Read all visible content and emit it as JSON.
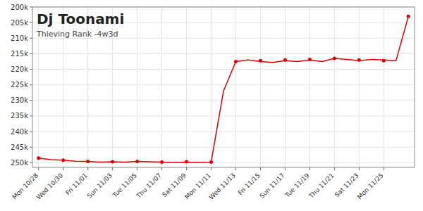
{
  "chart_data": {
    "type": "line",
    "title": "Dj Toonami",
    "subtitle": "Thieving Rank -4w3d",
    "categories": [
      "Mon 10/28",
      null,
      "Wed 10/30",
      null,
      "Fri 11/01",
      null,
      "Sun 11/03",
      null,
      "Tue 11/05",
      null,
      "Thu 11/07",
      null,
      "Sat 11/09",
      null,
      "Mon 11/11",
      null,
      "Wed 11/13",
      null,
      "Fri 11/15",
      null,
      "Sun 11/17",
      null,
      "Tue 11/19",
      null,
      "Thu 11/21",
      null,
      "Sat 11/23",
      null,
      "Mon 11/25",
      null,
      null
    ],
    "series": [
      {
        "type": "line",
        "marker": "none",
        "color": "#dd0000",
        "values": [
          248500,
          249000,
          249200,
          249500,
          249600,
          249800,
          249700,
          249800,
          249600,
          249700,
          249800,
          249900,
          249800,
          249900,
          249800,
          227000,
          217500,
          217000,
          217500,
          217800,
          217200,
          217500,
          217000,
          217500,
          216500,
          216800,
          217200,
          216800,
          217000,
          217200,
          203000
        ]
      },
      {
        "type": "scatter",
        "marker": "circle",
        "color": "#dd0000",
        "values": [
          248500,
          null,
          249200,
          null,
          249600,
          null,
          249700,
          null,
          249600,
          null,
          249800,
          null,
          249700,
          null,
          249800,
          null,
          217500,
          null,
          217200,
          null,
          217000,
          null,
          216800,
          null,
          216500,
          null,
          217000,
          null,
          217200,
          null,
          203000
        ]
      }
    ],
    "ylim": [
      251500,
      200000
    ],
    "yticks": [
      {
        "value": 200000,
        "label": "200k"
      },
      {
        "value": 205000,
        "label": "205k"
      },
      {
        "value": 210000,
        "label": "210k"
      },
      {
        "value": 215000,
        "label": "215k"
      },
      {
        "value": 220000,
        "label": "220k"
      },
      {
        "value": 225000,
        "label": "225k"
      },
      {
        "value": 230000,
        "label": "230k"
      },
      {
        "value": 235000,
        "label": "235k"
      },
      {
        "value": 240000,
        "label": "240k"
      },
      {
        "value": 245000,
        "label": "245k"
      },
      {
        "value": 250000,
        "label": "250k"
      }
    ],
    "grid": true
  }
}
